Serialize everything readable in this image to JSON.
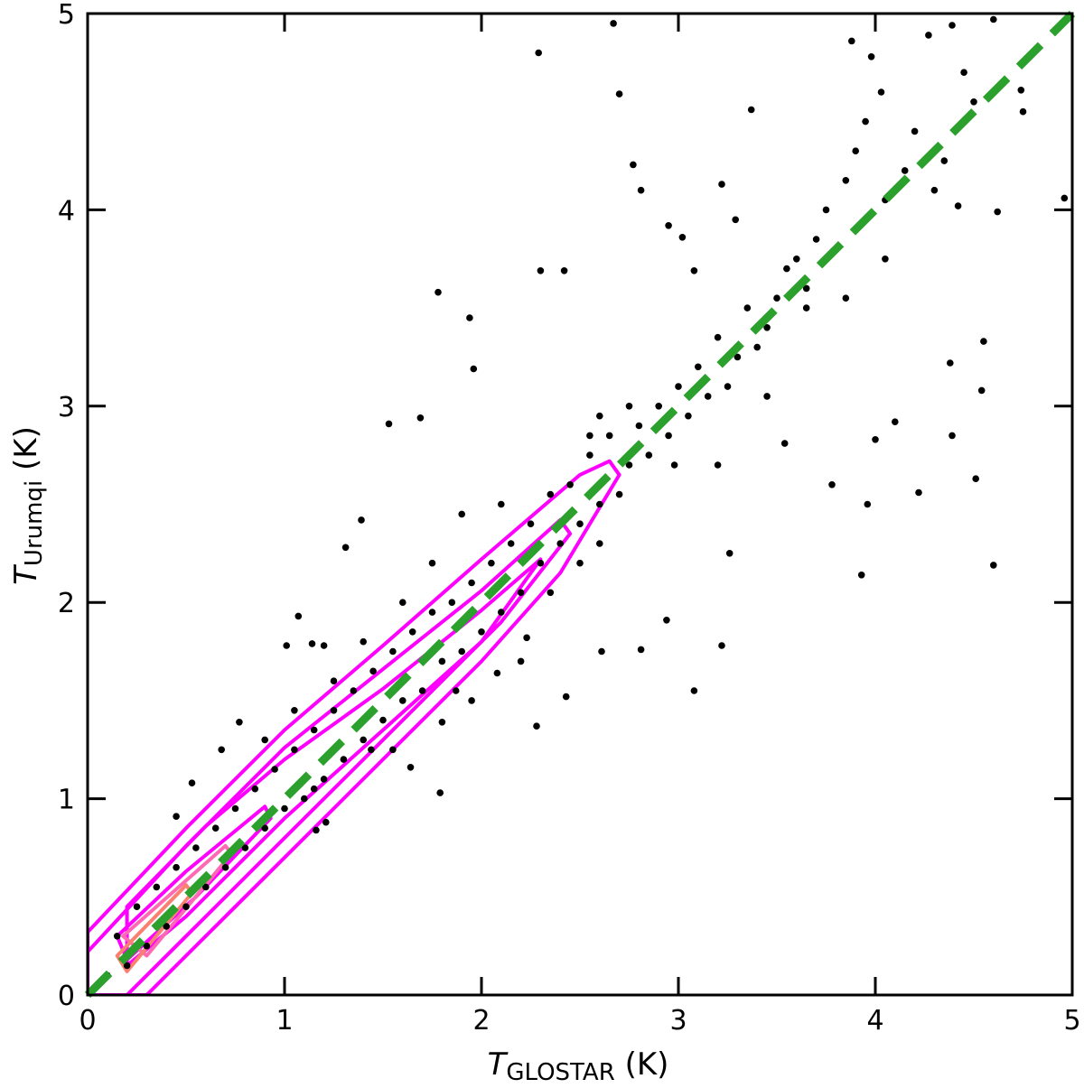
{
  "chart_data": {
    "type": "scatter",
    "title": "",
    "xlabel": {
      "main": "T",
      "sub": "GLOSTAR",
      "unit": " (K)"
    },
    "ylabel": {
      "main": "T",
      "sub": "Urumqi",
      "unit": " (K)"
    },
    "xlim": [
      0,
      5
    ],
    "ylim": [
      0,
      5
    ],
    "xticks": [
      "0",
      "1",
      "2",
      "3",
      "4",
      "5"
    ],
    "yticks": [
      "0",
      "1",
      "2",
      "3",
      "4",
      "5"
    ],
    "grid": false,
    "colors": {
      "points": "#000000",
      "line": "#2ca02c",
      "contour": "#ff00ff",
      "contour_inner": "#ff69b4",
      "contour_core": "#fa8072"
    },
    "reference_line": {
      "name": "y = x",
      "from": [
        0,
        0
      ],
      "to": [
        5,
        5
      ],
      "style": "dashed"
    },
    "points": [
      [
        2.67,
        4.95
      ],
      [
        2.29,
        4.8
      ],
      [
        2.7,
        4.59
      ],
      [
        2.77,
        4.23
      ],
      [
        2.81,
        4.1
      ],
      [
        3.37,
        4.51
      ],
      [
        3.88,
        4.86
      ],
      [
        3.98,
        4.78
      ],
      [
        4.03,
        4.6
      ],
      [
        4.27,
        4.89
      ],
      [
        4.39,
        4.94
      ],
      [
        4.6,
        4.97
      ],
      [
        4.74,
        4.61
      ],
      [
        4.75,
        4.5
      ],
      [
        4.96,
        4.06
      ],
      [
        4.62,
        3.99
      ],
      [
        4.55,
        3.33
      ],
      [
        4.54,
        3.08
      ],
      [
        4.51,
        2.63
      ],
      [
        4.39,
        2.85
      ],
      [
        4.38,
        3.22
      ],
      [
        4.6,
        2.19
      ],
      [
        4.22,
        2.56
      ],
      [
        4.1,
        2.92
      ],
      [
        4.0,
        2.83
      ],
      [
        3.96,
        2.5
      ],
      [
        3.93,
        2.14
      ],
      [
        3.78,
        2.6
      ],
      [
        3.54,
        2.81
      ],
      [
        3.26,
        2.25
      ],
      [
        3.22,
        1.78
      ],
      [
        3.08,
        1.55
      ],
      [
        2.94,
        1.91
      ],
      [
        2.81,
        1.76
      ],
      [
        2.61,
        1.75
      ],
      [
        2.43,
        1.52
      ],
      [
        2.28,
        1.37
      ],
      [
        1.79,
        1.03
      ],
      [
        1.78,
        3.58
      ],
      [
        1.94,
        3.45
      ],
      [
        1.96,
        3.19
      ],
      [
        1.69,
        2.94
      ],
      [
        1.53,
        2.91
      ],
      [
        2.3,
        3.69
      ],
      [
        2.42,
        3.69
      ],
      [
        2.95,
        3.92
      ],
      [
        3.08,
        3.69
      ],
      [
        3.02,
        3.86
      ],
      [
        3.22,
        4.13
      ],
      [
        3.29,
        3.95
      ],
      [
        1.31,
        2.28
      ],
      [
        1.39,
        2.42
      ],
      [
        1.07,
        1.93
      ],
      [
        1.01,
        1.78
      ],
      [
        1.14,
        1.79
      ],
      [
        1.2,
        1.78
      ],
      [
        0.68,
        1.25
      ],
      [
        0.77,
        1.39
      ],
      [
        0.53,
        1.08
      ],
      [
        0.45,
        0.91
      ],
      [
        2.23,
        1.82
      ],
      [
        2.08,
        1.64
      ],
      [
        1.87,
        1.55
      ],
      [
        1.8,
        1.39
      ],
      [
        1.64,
        1.16
      ],
      [
        1.44,
        1.25
      ],
      [
        1.21,
        0.88
      ],
      [
        1.16,
        0.84
      ],
      [
        4.45,
        4.7
      ],
      [
        4.5,
        4.55
      ],
      [
        4.35,
        4.25
      ],
      [
        4.15,
        4.2
      ],
      [
        4.05,
        4.05
      ],
      [
        4.3,
        4.1
      ],
      [
        4.42,
        4.02
      ],
      [
        4.2,
        4.4
      ],
      [
        3.95,
        4.45
      ],
      [
        3.9,
        4.3
      ],
      [
        3.85,
        4.15
      ],
      [
        3.75,
        4.0
      ],
      [
        3.7,
        3.85
      ],
      [
        3.6,
        3.75
      ],
      [
        3.65,
        3.6
      ],
      [
        3.55,
        3.7
      ],
      [
        3.8,
        3.8
      ],
      [
        3.5,
        3.55
      ],
      [
        3.45,
        3.4
      ],
      [
        3.4,
        3.3
      ],
      [
        3.35,
        3.5
      ],
      [
        3.3,
        3.25
      ],
      [
        3.25,
        3.1
      ],
      [
        3.2,
        3.35
      ],
      [
        3.15,
        3.05
      ],
      [
        3.1,
        3.2
      ],
      [
        3.05,
        2.95
      ],
      [
        3.0,
        3.1
      ],
      [
        2.95,
        2.85
      ],
      [
        2.9,
        3.0
      ],
      [
        2.85,
        2.75
      ],
      [
        2.8,
        2.9
      ],
      [
        2.75,
        2.7
      ],
      [
        2.7,
        2.55
      ],
      [
        2.65,
        2.85
      ],
      [
        2.6,
        2.5
      ],
      [
        2.55,
        2.75
      ],
      [
        2.5,
        2.4
      ],
      [
        2.45,
        2.6
      ],
      [
        2.4,
        2.3
      ],
      [
        2.35,
        2.55
      ],
      [
        2.3,
        2.2
      ],
      [
        2.25,
        2.4
      ],
      [
        2.2,
        2.05
      ],
      [
        2.15,
        2.3
      ],
      [
        2.1,
        1.95
      ],
      [
        2.05,
        2.2
      ],
      [
        2.0,
        1.85
      ],
      [
        1.95,
        2.1
      ],
      [
        1.9,
        1.75
      ],
      [
        1.85,
        2.0
      ],
      [
        1.8,
        1.7
      ],
      [
        1.75,
        1.95
      ],
      [
        1.7,
        1.55
      ],
      [
        1.65,
        1.85
      ],
      [
        1.6,
        1.5
      ],
      [
        1.55,
        1.75
      ],
      [
        1.5,
        1.4
      ],
      [
        1.45,
        1.65
      ],
      [
        1.4,
        1.3
      ],
      [
        1.35,
        1.55
      ],
      [
        1.3,
        1.2
      ],
      [
        1.25,
        1.45
      ],
      [
        1.2,
        1.1
      ],
      [
        1.15,
        1.35
      ],
      [
        1.1,
        1.0
      ],
      [
        1.05,
        1.25
      ],
      [
        1.0,
        0.95
      ],
      [
        0.95,
        1.15
      ],
      [
        0.9,
        0.85
      ],
      [
        0.85,
        1.05
      ],
      [
        0.8,
        0.75
      ],
      [
        0.75,
        0.95
      ],
      [
        0.7,
        0.65
      ],
      [
        0.65,
        0.85
      ],
      [
        0.6,
        0.55
      ],
      [
        0.55,
        0.75
      ],
      [
        0.5,
        0.45
      ],
      [
        0.45,
        0.65
      ],
      [
        0.4,
        0.35
      ],
      [
        0.35,
        0.55
      ],
      [
        0.3,
        0.25
      ],
      [
        0.25,
        0.45
      ],
      [
        0.2,
        0.15
      ],
      [
        0.15,
        0.3
      ],
      [
        0.1,
        0.1
      ],
      [
        2.6,
        2.95
      ],
      [
        2.75,
        3.0
      ],
      [
        2.55,
        2.85
      ],
      [
        3.45,
        3.05
      ],
      [
        3.65,
        3.5
      ],
      [
        3.85,
        3.55
      ],
      [
        4.05,
        3.75
      ],
      [
        3.2,
        2.7
      ],
      [
        2.98,
        2.7
      ],
      [
        1.9,
        2.45
      ],
      [
        2.1,
        2.5
      ],
      [
        1.6,
        2.0
      ],
      [
        1.75,
        2.2
      ],
      [
        1.25,
        1.6
      ],
      [
        1.4,
        1.8
      ],
      [
        2.35,
        2.05
      ],
      [
        2.5,
        2.2
      ],
      [
        2.6,
        2.3
      ],
      [
        1.55,
        1.25
      ],
      [
        1.95,
        1.5
      ],
      [
        2.2,
        1.7
      ],
      [
        1.05,
        1.45
      ],
      [
        0.9,
        1.3
      ],
      [
        1.15,
        1.05
      ]
    ],
    "contours": [
      {
        "level": "outer",
        "path": [
          [
            0,
            0.32
          ],
          [
            0.5,
            0.85
          ],
          [
            1.0,
            1.35
          ],
          [
            1.5,
            1.78
          ],
          [
            2.0,
            2.22
          ],
          [
            2.5,
            2.65
          ],
          [
            2.65,
            2.72
          ],
          [
            2.7,
            2.65
          ],
          [
            2.4,
            2.15
          ],
          [
            2.0,
            1.7
          ],
          [
            1.5,
            1.2
          ],
          [
            1.0,
            0.7
          ],
          [
            0.5,
            0.2
          ],
          [
            0.3,
            0
          ],
          [
            0,
            0
          ]
        ]
      },
      {
        "level": "2",
        "path": [
          [
            0,
            0.22
          ],
          [
            0.5,
            0.76
          ],
          [
            1,
            1.26
          ],
          [
            1.5,
            1.66
          ],
          [
            2,
            2.06
          ],
          [
            2.4,
            2.42
          ],
          [
            2.45,
            2.35
          ],
          [
            2.1,
            1.9
          ],
          [
            1.5,
            1.3
          ],
          [
            1,
            0.8
          ],
          [
            0.5,
            0.3
          ],
          [
            0.2,
            0
          ],
          [
            0,
            0
          ]
        ]
      },
      {
        "level": "3",
        "path": [
          [
            0.2,
            0.45
          ],
          [
            0.6,
            0.86
          ],
          [
            1,
            1.2
          ],
          [
            1.5,
            1.56
          ],
          [
            2.0,
            1.96
          ],
          [
            2.3,
            2.22
          ],
          [
            2.0,
            1.8
          ],
          [
            1.5,
            1.35
          ],
          [
            1,
            0.9
          ],
          [
            0.5,
            0.4
          ],
          [
            0.2,
            0.15
          ]
        ]
      },
      {
        "level": "4",
        "path": [
          [
            0.15,
            0.3
          ],
          [
            0.5,
            0.63
          ],
          [
            0.9,
            0.96
          ],
          [
            0.93,
            0.9
          ],
          [
            0.55,
            0.5
          ],
          [
            0.2,
            0.18
          ]
        ]
      },
      {
        "level": "5",
        "path": [
          [
            0.18,
            0.3
          ],
          [
            0.7,
            0.76
          ],
          [
            0.73,
            0.72
          ],
          [
            0.3,
            0.2
          ]
        ]
      },
      {
        "level": "core",
        "path": [
          [
            0.15,
            0.2
          ],
          [
            0.5,
            0.56
          ],
          [
            0.53,
            0.52
          ],
          [
            0.2,
            0.12
          ]
        ]
      }
    ]
  }
}
